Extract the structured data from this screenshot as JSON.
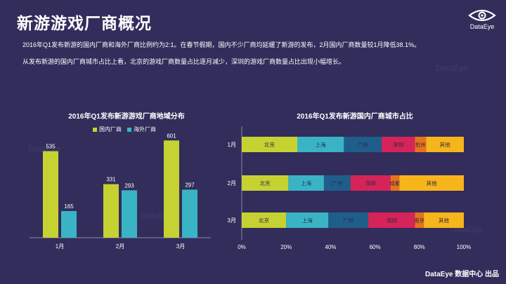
{
  "slide": {
    "title": "新游游戏厂商概况",
    "logo_text": "DataEye",
    "paragraph1": "2016年Q1发布新游的国内厂商和海外厂商比例约为2:1。在春节假期，国内不少厂商均延缓了新游的发布，2月国内厂商数量较1月降低38.1%。",
    "paragraph2": "从发布新游的国内厂商城市占比上看，北京的游戏厂商数量占比逐月减少，深圳的游戏厂商数量占比出现小幅增长。",
    "footer": "DataEye 数据中心 出品",
    "watermark": "DataEye"
  },
  "chart_data": [
    {
      "type": "bar",
      "title": "2016年Q1发布新游游戏厂商地域分布",
      "categories": [
        "1月",
        "2月",
        "3月"
      ],
      "series": [
        {
          "name": "国内厂商",
          "values": [
            535,
            331,
            601
          ],
          "color": "#c6d232"
        },
        {
          "name": "海外厂商",
          "values": [
            165,
            293,
            297
          ],
          "color": "#3ab4c4"
        }
      ],
      "ylim": [
        0,
        650
      ],
      "legend": "top",
      "grid": false
    },
    {
      "type": "bar",
      "orientation": "horizontal",
      "stacked": "percent",
      "title": "2016年Q1发布新游国内厂商城市占比",
      "categories": [
        "1月",
        "2月",
        "3月"
      ],
      "x_ticks": [
        "0%",
        "20%",
        "40%",
        "60%",
        "80%",
        "100%"
      ],
      "series": [
        {
          "name": "北京",
          "color": "#c6d232",
          "values": [
            25,
            21,
            20
          ]
        },
        {
          "name": "上海",
          "color": "#3ab4c4",
          "values": [
            21,
            16,
            19
          ]
        },
        {
          "name": "广州",
          "color": "#1f5e8a",
          "values": [
            17,
            12,
            18
          ]
        },
        {
          "name": "深圳",
          "color": "#d6245a",
          "values": [
            15,
            18,
            21
          ]
        },
        {
          "name": "杭州",
          "color": "#e8721c",
          "values": [
            5,
            0,
            0
          ]
        },
        {
          "name": "成都",
          "color": "#e8721c",
          "values": [
            0,
            4,
            0
          ]
        },
        {
          "name": "南京",
          "color": "#e8721c",
          "values": [
            0,
            0,
            4
          ]
        },
        {
          "name": "其他",
          "color": "#f7b51c",
          "values": [
            17,
            29,
            18
          ]
        }
      ],
      "grid": false
    }
  ]
}
